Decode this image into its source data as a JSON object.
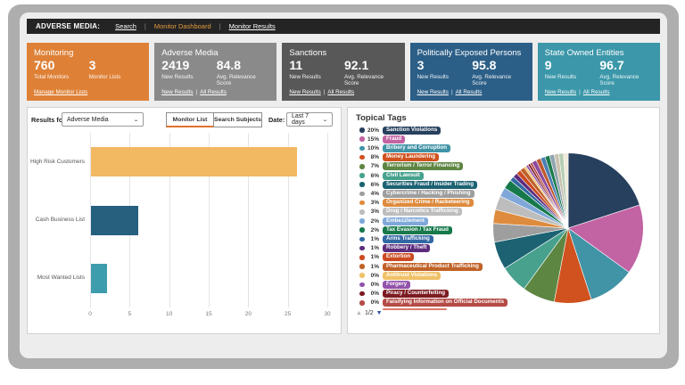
{
  "topbar": {
    "brand": "ADVERSE MEDIA:",
    "separator": "|",
    "links": [
      {
        "label": "Search",
        "active": false
      },
      {
        "label": "Monitor Dashboard",
        "active": true
      },
      {
        "label": "Monitor Results",
        "active": false
      }
    ]
  },
  "cards": [
    {
      "title": "Monitoring",
      "color": "#de8137",
      "stats": [
        {
          "value": "760",
          "label": "Total Monitors"
        },
        {
          "value": "3",
          "label": "Monitor Lists"
        }
      ],
      "links": [
        "Manage Monitor Lists"
      ],
      "link_sep": ""
    },
    {
      "title": "Adverse Media",
      "color": "#8a8a8a",
      "stats": [
        {
          "value": "2419",
          "label": "New Results"
        },
        {
          "value": "84.8",
          "label": "Avg. Relevance Score"
        }
      ],
      "links": [
        "New Results",
        "All Results"
      ],
      "link_sep": "|"
    },
    {
      "title": "Sanctions",
      "color": "#585858",
      "stats": [
        {
          "value": "11",
          "label": "New Results"
        },
        {
          "value": "92.1",
          "label": "Avg. Relevance Score"
        }
      ],
      "links": [
        "New Results",
        "All Results"
      ],
      "link_sep": "|"
    },
    {
      "title": "Politically Exposed Persons",
      "color": "#2c5f87",
      "stats": [
        {
          "value": "3",
          "label": "New Results"
        },
        {
          "value": "95.8",
          "label": "Avg. Relevance Score"
        }
      ],
      "links": [
        "New Results",
        "All Results"
      ],
      "link_sep": "|"
    },
    {
      "title": "State Owned Entities",
      "color": "#3b97a9",
      "stats": [
        {
          "value": "9",
          "label": "New Results"
        },
        {
          "value": "96.7",
          "label": "Avg. Relevance Score"
        }
      ],
      "links": [
        "New Results",
        "All Results"
      ],
      "link_sep": "|"
    }
  ],
  "controls": {
    "results_for_label": "Results for:",
    "results_for_value": "Adverse Media",
    "buttons": [
      {
        "label": "Monitor List",
        "active": true
      },
      {
        "label": "Search Subjects",
        "active": false
      }
    ],
    "date_label": "Date:",
    "date_value": "Last 7 days",
    "chevron": "⌄"
  },
  "topical": {
    "title": "Topical Tags",
    "pager_up": "▲",
    "pager_page": "1/2",
    "pager_down": "▼",
    "cutoff_color": "#dd7a68"
  },
  "chart_data": [
    {
      "type": "bar",
      "orientation": "horizontal",
      "title": "",
      "xlabel": "",
      "ylabel": "",
      "categories": [
        "High Risk Customers",
        "Cash Business List",
        "Most Wanted Lists"
      ],
      "values": [
        26,
        6,
        2
      ],
      "colors": [
        "#f2b862",
        "#26607f",
        "#3e9dad"
      ],
      "xlim": [
        0,
        30
      ],
      "xticks": [
        0,
        5,
        10,
        15,
        20,
        25,
        30
      ],
      "grid": true,
      "legend_position": "none"
    },
    {
      "type": "pie",
      "title": "Topical Tags",
      "legend_position": "left",
      "start_angle_deg": -90,
      "direction": "clockwise",
      "labels": [
        "Sanction Violations",
        "Fraud",
        "Bribery and Corruption",
        "Money Laundering",
        "Terrorism / Terror Financing",
        "Civil Lawsuit",
        "Securities Fraud / Insider Trading",
        "Cybercrime / Hacking / Phishing",
        "Organized Crime / Racketeering",
        "Drug / Narcotics Trafficking",
        "Embezzlement",
        "Tax Evasion / Tax Fraud",
        "Arms Trafficking",
        "Robbery / Theft",
        "Extortion",
        "Pharmaceutical Product Trafficking",
        "Antitrust Violations",
        "Forgery",
        "Piracy / Counterfeiting",
        "Falsifying Information on Official Documents"
      ],
      "display_pct": [
        "20%",
        "15%",
        "10%",
        "8%",
        "7%",
        "6%",
        "6%",
        "4%",
        "3%",
        "3%",
        "2%",
        "2%",
        "1%",
        "1%",
        "1%",
        "1%",
        "0%",
        "0%",
        "0%",
        "0%"
      ],
      "values": [
        20,
        15,
        10,
        8,
        7,
        6,
        6,
        4,
        3,
        3,
        2,
        2,
        1,
        1,
        1,
        1,
        0.5,
        0.5,
        0.5,
        0.5
      ],
      "colors": [
        "#27405e",
        "#c263a3",
        "#4193a6",
        "#d0521f",
        "#5e8643",
        "#47a18d",
        "#1c6272",
        "#9e9e9e",
        "#de8b3e",
        "#bdbdbd",
        "#7fa8d9",
        "#17794b",
        "#3268a3",
        "#5c2d7d",
        "#cc4a21",
        "#c06228",
        "#f0c168",
        "#9253ab",
        "#7c1b22",
        "#b44b46"
      ],
      "extra_unlabeled_slices": {
        "note": "tags on page 2 of legend",
        "values": [
          1,
          1,
          1,
          1,
          1,
          1,
          1,
          1
        ],
        "colors": [
          "#8a4a9e",
          "#c05a2e",
          "#4a7fb5",
          "#1b7b4c",
          "#8fa3b0",
          "#c8c2ae",
          "#b5cdb2",
          "#efead8"
        ]
      }
    }
  ]
}
